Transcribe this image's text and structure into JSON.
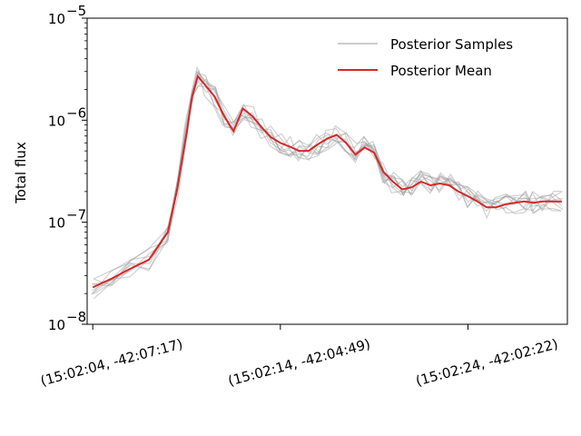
{
  "chart_data": {
    "type": "line",
    "title": "",
    "xlabel": "",
    "ylabel": "Total flux",
    "yscale": "log",
    "ylim": [
      1e-08,
      1e-05
    ],
    "y_ticks": [
      {
        "value": 1e-08,
        "base": "10",
        "exp": "−8"
      },
      {
        "value": 1e-07,
        "base": "10",
        "exp": "−7"
      },
      {
        "value": 1e-06,
        "base": "10",
        "exp": "−6"
      },
      {
        "value": 1e-05,
        "base": "10",
        "exp": "−5"
      }
    ],
    "x_tick_labels": [
      "(15:02:04, -42:07:17)",
      "(15:02:14, -42:04:49)",
      "(15:02:24, -42:02:22)"
    ],
    "x_tick_index": [
      0,
      10,
      20
    ],
    "xlim_index": [
      -0.3,
      25.3
    ],
    "grid": false,
    "legend_position": "upper right",
    "series_mean": {
      "name": "Posterior Mean",
      "color": "#d62728",
      "x": [
        0,
        1,
        2,
        3,
        4,
        4.5,
        5,
        5.3,
        5.6,
        6,
        6.5,
        7,
        7.5,
        8,
        8.5,
        9,
        9.5,
        10,
        10.5,
        11,
        11.5,
        12,
        12.5,
        13,
        13.5,
        14,
        14.5,
        15,
        15.5,
        16,
        16.5,
        17,
        17.5,
        18,
        18.5,
        19,
        19.5,
        20,
        20.5,
        21,
        21.5,
        22,
        22.5,
        23,
        23.5,
        24,
        24.5,
        25
      ],
      "y": [
        2.3e-08,
        2.8e-08,
        3.5e-08,
        4.3e-08,
        8e-08,
        2.1e-07,
        7.5e-07,
        1.7e-06,
        2.7e-06,
        2.2e-06,
        1.7e-06,
        1.1e-06,
        7.8e-07,
        1.3e-06,
        1.1e-06,
        8.5e-07,
        6.8e-07,
        6e-07,
        5.5e-07,
        5e-07,
        5e-07,
        5.8e-07,
        6.6e-07,
        7.2e-07,
        6e-07,
        4.6e-07,
        5.4e-07,
        4.8e-07,
        3.1e-07,
        2.5e-07,
        2.1e-07,
        2.2e-07,
        2.5e-07,
        2.3e-07,
        2.4e-07,
        2.3e-07,
        2e-07,
        1.8e-07,
        1.6e-07,
        1.4e-07,
        1.4e-07,
        1.5e-07,
        1.55e-07,
        1.6e-07,
        1.55e-07,
        1.6e-07,
        1.6e-07,
        1.6e-07
      ]
    },
    "samples": {
      "name": "Posterior Samples",
      "color": "#999999"
    }
  }
}
